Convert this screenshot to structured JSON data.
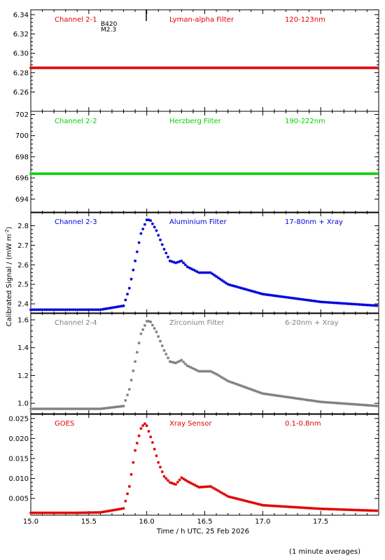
{
  "figure": {
    "ylabel": "Calibrated Signal / (mW m",
    "ylabel_sup": "-2",
    "ylabel_end": ")",
    "xlabel": "Time / h UTC, 25 Feb 2026",
    "footnote": "(1 minute averages)",
    "flare_class_label": "B420",
    "flare_class_value": "M2.3"
  },
  "chart_data": [
    {
      "type": "scatter",
      "channel": "Channel 2-1",
      "filter": "Lyman-alpha Filter",
      "band": "120-123nm",
      "color": "#e00000",
      "xlim": [
        15.0,
        18.0
      ],
      "ylim": [
        6.24,
        6.345
      ],
      "yticks": [
        "6.26",
        "6.28",
        "6.30",
        "6.32",
        "6.34"
      ],
      "series": [
        {
          "x": [
            15.0,
            16.0,
            16.5,
            17.0,
            18.0
          ],
          "values": [
            6.285,
            6.285,
            6.285,
            6.285,
            6.285
          ]
        }
      ]
    },
    {
      "type": "scatter",
      "channel": "Channel 2-2",
      "filter": "Herzberg Filter",
      "band": "190-222nm",
      "color": "#00d000",
      "xlim": [
        15.0,
        18.0
      ],
      "ylim": [
        692.7,
        702.3
      ],
      "yticks": [
        "694",
        "696",
        "698",
        "700",
        "702"
      ],
      "series": [
        {
          "x": [
            15.0,
            16.0,
            16.5,
            17.0,
            18.0
          ],
          "values": [
            696.4,
            696.4,
            696.4,
            696.4,
            696.4
          ]
        }
      ]
    },
    {
      "type": "scatter",
      "channel": "Channel 2-3",
      "filter": "Aluminium Filter",
      "band": "17-80nm + Xray",
      "color": "#0000dd",
      "xlim": [
        15.0,
        18.0
      ],
      "ylim": [
        2.35,
        2.87
      ],
      "yticks": [
        "2.4",
        "2.5",
        "2.6",
        "2.7",
        "2.8"
      ],
      "series": [
        {
          "x": [
            15.0,
            15.4,
            15.6,
            15.8,
            15.85,
            15.9,
            15.95,
            16.0,
            16.03,
            16.08,
            16.15,
            16.2,
            16.25,
            16.3,
            16.35,
            16.45,
            16.55,
            16.6,
            16.7,
            17.0,
            17.5,
            18.0
          ],
          "values": [
            2.37,
            2.37,
            2.37,
            2.39,
            2.48,
            2.62,
            2.76,
            2.83,
            2.83,
            2.78,
            2.68,
            2.62,
            2.61,
            2.62,
            2.59,
            2.56,
            2.56,
            2.54,
            2.5,
            2.45,
            2.41,
            2.39
          ]
        }
      ]
    },
    {
      "type": "scatter",
      "channel": "Channel 2-4",
      "filter": "Zirconium Filter",
      "band": "6-20nm + Xray",
      "color": "#808080",
      "xlim": [
        15.0,
        18.0
      ],
      "ylim": [
        0.92,
        1.65
      ],
      "yticks": [
        "1.0",
        "1.2",
        "1.4",
        "1.6"
      ],
      "series": [
        {
          "x": [
            15.0,
            15.4,
            15.6,
            15.8,
            15.85,
            15.9,
            15.95,
            16.0,
            16.03,
            16.08,
            16.15,
            16.2,
            16.25,
            16.3,
            16.35,
            16.45,
            16.55,
            16.6,
            16.7,
            17.0,
            17.5,
            18.0
          ],
          "values": [
            0.96,
            0.96,
            0.96,
            0.98,
            1.1,
            1.3,
            1.5,
            1.59,
            1.59,
            1.52,
            1.38,
            1.3,
            1.29,
            1.31,
            1.27,
            1.23,
            1.23,
            1.21,
            1.16,
            1.07,
            1.01,
            0.98
          ]
        }
      ]
    },
    {
      "type": "scatter",
      "channel": "GOES",
      "filter": "Xray Sensor",
      "band": "0.1-0.8nm",
      "color": "#e00000",
      "xlim": [
        15.0,
        18.0
      ],
      "ylim": [
        0.0008,
        0.0262
      ],
      "yticks": [
        "0.005",
        "0.010",
        "0.015",
        "0.020",
        "0.025"
      ],
      "series": [
        {
          "x": [
            15.0,
            15.4,
            15.6,
            15.8,
            15.85,
            15.9,
            15.95,
            15.98,
            16.0,
            16.05,
            16.1,
            16.15,
            16.2,
            16.25,
            16.3,
            16.35,
            16.45,
            16.55,
            16.6,
            16.7,
            17.0,
            17.5,
            18.0
          ],
          "values": [
            0.0014,
            0.0014,
            0.0015,
            0.0025,
            0.008,
            0.017,
            0.0225,
            0.0238,
            0.0232,
            0.019,
            0.014,
            0.0105,
            0.009,
            0.0085,
            0.0102,
            0.0093,
            0.0078,
            0.008,
            0.0072,
            0.0055,
            0.0033,
            0.0024,
            0.0019
          ]
        }
      ]
    }
  ],
  "xaxis": {
    "ticks": [
      "15.0",
      "15.5",
      "16.0",
      "16.5",
      "17.0",
      "17.5"
    ]
  }
}
